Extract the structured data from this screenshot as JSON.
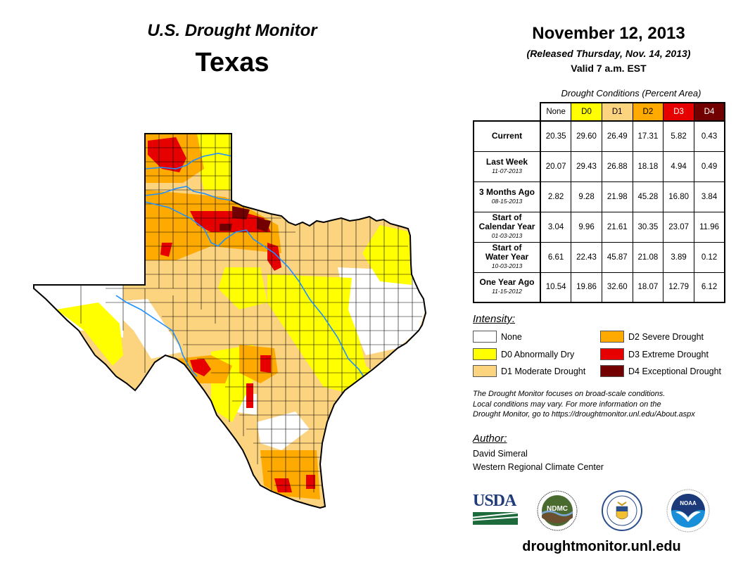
{
  "header": {
    "title": "U.S. Drought Monitor",
    "state": "Texas",
    "date": "November 12, 2013",
    "released": "(Released Thursday, Nov. 14, 2013)",
    "valid": "Valid 7 a.m. EST"
  },
  "table": {
    "caption": "Drought Conditions (Percent Area)",
    "columns": [
      {
        "label": "None",
        "color": "#ffffff",
        "text_color": "#000000"
      },
      {
        "label": "D0",
        "color": "#ffff00",
        "text_color": "#000000"
      },
      {
        "label": "D1",
        "color": "#fcd37f",
        "text_color": "#000000"
      },
      {
        "label": "D2",
        "color": "#ffaa00",
        "text_color": "#000000"
      },
      {
        "label": "D3",
        "color": "#e60000",
        "text_color": "#ffffff"
      },
      {
        "label": "D4",
        "color": "#730000",
        "text_color": "#ffffff"
      }
    ],
    "rows": [
      {
        "label": "Current",
        "label2": "",
        "date": "",
        "values": [
          "20.35",
          "29.60",
          "26.49",
          "17.31",
          "5.82",
          "0.43"
        ]
      },
      {
        "label": "Last Week",
        "label2": "",
        "date": "11-07-2013",
        "values": [
          "20.07",
          "29.43",
          "26.88",
          "18.18",
          "4.94",
          "0.49"
        ]
      },
      {
        "label": "3 Months Ago",
        "label2": "",
        "date": "08-15-2013",
        "values": [
          "2.82",
          "9.28",
          "21.98",
          "45.28",
          "16.80",
          "3.84"
        ]
      },
      {
        "label": "Start of",
        "label2": "Calendar Year",
        "date": "01-03-2013",
        "values": [
          "3.04",
          "9.96",
          "21.61",
          "30.35",
          "23.07",
          "11.96"
        ]
      },
      {
        "label": "Start of",
        "label2": "Water Year",
        "date": "10-03-2013",
        "values": [
          "6.61",
          "22.43",
          "45.87",
          "21.08",
          "3.89",
          "0.12"
        ]
      },
      {
        "label": "One Year Ago",
        "label2": "",
        "date": "11-15-2012",
        "values": [
          "10.54",
          "19.86",
          "32.60",
          "18.07",
          "12.79",
          "6.12"
        ]
      }
    ]
  },
  "legend": {
    "title": "Intensity:",
    "items": [
      {
        "label": "None",
        "color": "#ffffff"
      },
      {
        "label": "D0 Abnormally Dry",
        "color": "#ffff00"
      },
      {
        "label": "D1 Moderate Drought",
        "color": "#fcd37f"
      },
      {
        "label": "D2 Severe Drought",
        "color": "#ffaa00"
      },
      {
        "label": "D3 Extreme Drought",
        "color": "#e60000"
      },
      {
        "label": "D4 Exceptional Drought",
        "color": "#730000"
      }
    ]
  },
  "note": [
    "The Drought Monitor focuses on broad-scale conditions.",
    "Local conditions may vary. For more information on the",
    "Drought Monitor, go to https://droughtmonitor.unl.edu/About.aspx"
  ],
  "author": {
    "title": "Author:",
    "name": "David Simeral",
    "org": "Western Regional Climate Center"
  },
  "logos": {
    "usda": "USDA",
    "ndmc": "NDMC",
    "noaa": "NOAA"
  },
  "website": "droughtmonitor.unl.edu",
  "map": {
    "region": "Texas",
    "river_color": "#1e90ff"
  }
}
